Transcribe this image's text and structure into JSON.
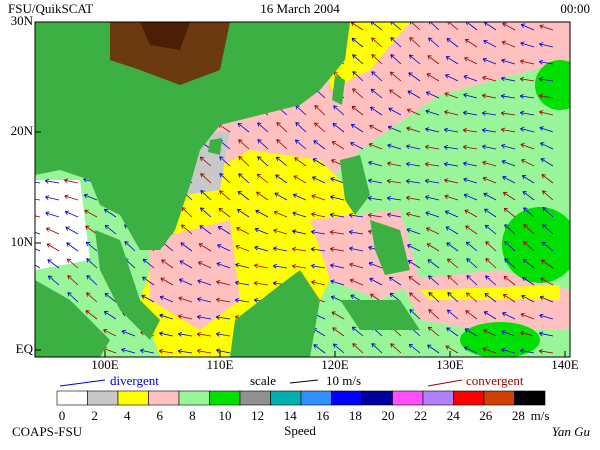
{
  "header": {
    "left": "FSU/QuikSCAT",
    "center": "16 March 2004",
    "right": "00:00"
  },
  "map": {
    "lat_labels": [
      "30N",
      "20N",
      "10N",
      "EQ"
    ],
    "lon_labels": [
      "100E",
      "110E",
      "120E",
      "130E",
      "140E"
    ]
  },
  "legend": {
    "divergent": "divergent",
    "scale": "scale",
    "scale_value": "10 m/s",
    "convergent": "convergent"
  },
  "colorbar": {
    "ticks": [
      0,
      2,
      4,
      6,
      8,
      10,
      12,
      14,
      16,
      18,
      20,
      22,
      24,
      26,
      28
    ],
    "unit": "m/s",
    "title": "Speed",
    "colors": [
      "#ffffff",
      "#c8c8c8",
      "#ffff00",
      "#ffc0c0",
      "#98f598",
      "#00e000",
      "#909090",
      "#00b0b0",
      "#3090ff",
      "#0000ff",
      "#0000a0",
      "#ff50ff",
      "#b080ff",
      "#ff0000",
      "#d04000",
      "#000000"
    ]
  },
  "footer": {
    "left": "COAPS-FSU",
    "right": "Yan Gu"
  }
}
